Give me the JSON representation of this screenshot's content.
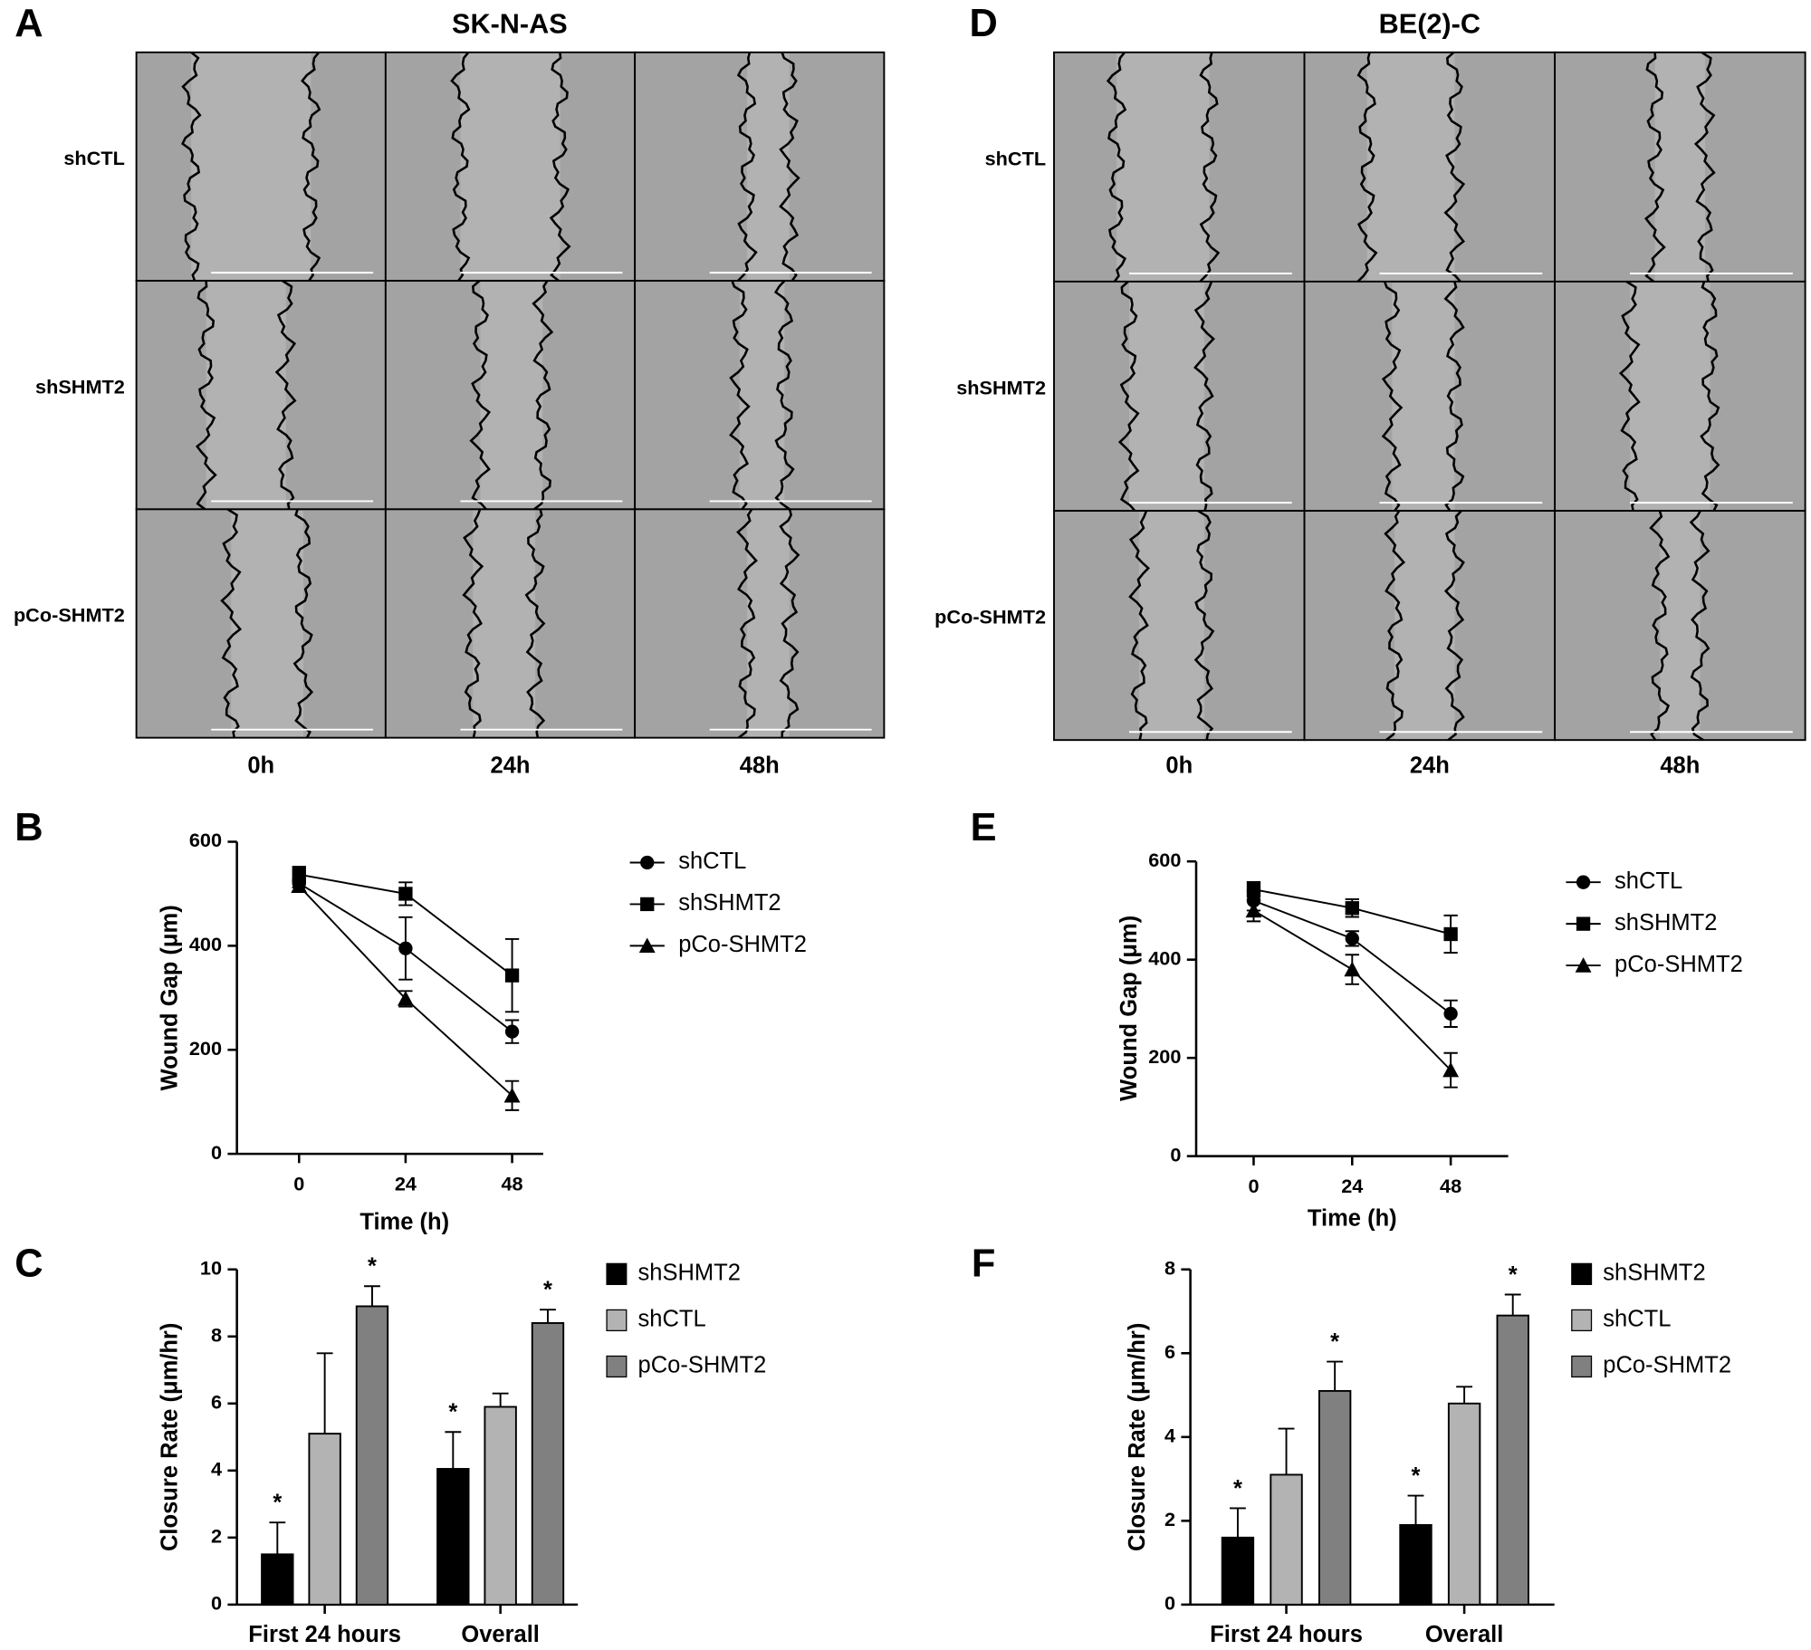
{
  "panels": [
    {
      "label": "A",
      "title": "SK-N-AS",
      "rows": [
        "shCTL",
        "shSHMT2",
        "pCo-SHMT2"
      ],
      "columns": [
        "0h",
        "24h",
        "48h"
      ]
    },
    {
      "label": "D",
      "title": "BE(2)-C",
      "rows": [
        "shCTL",
        "shSHMT2",
        "pCo-SHMT2"
      ],
      "columns": [
        "0h",
        "24h",
        "48h"
      ]
    }
  ],
  "chart_data": [
    {
      "label": "B",
      "type": "line",
      "x": [
        0,
        24,
        48
      ],
      "xlabel": "Time (h)",
      "ylabel": "Wound Gap (μm)",
      "xlim": [
        -14,
        55
      ],
      "xticks": [
        0,
        24,
        48
      ],
      "ylim": [
        0,
        600
      ],
      "yticks": [
        0,
        200,
        400,
        600
      ],
      "series": [
        {
          "name": "shCTL",
          "color": "#000000",
          "marker": "circle",
          "values": [
            520,
            395,
            235
          ],
          "errors": [
            8,
            60,
            22
          ]
        },
        {
          "name": "shSHMT2",
          "color": "#000000",
          "marker": "square",
          "values": [
            537,
            500,
            343
          ],
          "errors": [
            15,
            22,
            70
          ]
        },
        {
          "name": "pCo-SHMT2",
          "color": "#000000",
          "marker": "triangle",
          "values": [
            515,
            298,
            112
          ],
          "errors": [
            10,
            15,
            28
          ]
        }
      ]
    },
    {
      "label": "C",
      "type": "bar",
      "categories": [
        "First 24 hours",
        "Overall"
      ],
      "ylabel": "Closure Rate (μm/hr)",
      "ylim": [
        0,
        10
      ],
      "yticks": [
        0,
        2,
        4,
        6,
        8,
        10
      ],
      "series": [
        {
          "name": "shSHMT2",
          "color": "#000000",
          "values": [
            1.5,
            4.05
          ],
          "errors": [
            0.95,
            1.1
          ],
          "significance": [
            "*",
            "*"
          ]
        },
        {
          "name": "shCTL",
          "color": "#b3b3b3",
          "values": [
            5.1,
            5.9
          ],
          "errors": [
            2.4,
            0.4
          ]
        },
        {
          "name": "pCo-SHMT2",
          "color": "#808080",
          "values": [
            8.9,
            8.4
          ],
          "errors": [
            0.6,
            0.4
          ],
          "significance": [
            "*",
            "*"
          ]
        }
      ]
    },
    {
      "label": "E",
      "type": "line",
      "x": [
        0,
        24,
        48
      ],
      "xlabel": "Time (h)",
      "ylabel": "Wound Gap (μm)",
      "xlim": [
        -14,
        62
      ],
      "xticks": [
        0,
        24,
        48
      ],
      "ylim": [
        0,
        600
      ],
      "yticks": [
        0,
        200,
        400,
        600
      ],
      "series": [
        {
          "name": "shCTL",
          "color": "#000000",
          "marker": "circle",
          "values": [
            520,
            443,
            290
          ],
          "errors": [
            20,
            15,
            27
          ]
        },
        {
          "name": "shSHMT2",
          "color": "#000000",
          "marker": "square",
          "values": [
            543,
            505,
            452
          ],
          "errors": [
            15,
            18,
            38
          ]
        },
        {
          "name": "pCo-SHMT2",
          "color": "#000000",
          "marker": "triangle",
          "values": [
            500,
            380,
            175
          ],
          "errors": [
            22,
            30,
            35
          ]
        }
      ]
    },
    {
      "label": "F",
      "type": "bar",
      "categories": [
        "First 24 hours",
        "Overall"
      ],
      "ylabel": "Closure Rate (μm/hr)",
      "ylim": [
        0,
        8
      ],
      "yticks": [
        0,
        2,
        4,
        6,
        8
      ],
      "series": [
        {
          "name": "shSHMT2",
          "color": "#000000",
          "values": [
            1.6,
            1.9
          ],
          "errors": [
            0.7,
            0.7
          ],
          "significance": [
            "*",
            "*"
          ]
        },
        {
          "name": "shCTL",
          "color": "#b3b3b3",
          "values": [
            3.1,
            4.8
          ],
          "errors": [
            1.1,
            0.4
          ]
        },
        {
          "name": "pCo-SHMT2",
          "color": "#808080",
          "values": [
            5.1,
            6.9
          ],
          "errors": [
            0.7,
            0.5
          ],
          "significance": [
            "*",
            "*"
          ]
        }
      ]
    }
  ]
}
